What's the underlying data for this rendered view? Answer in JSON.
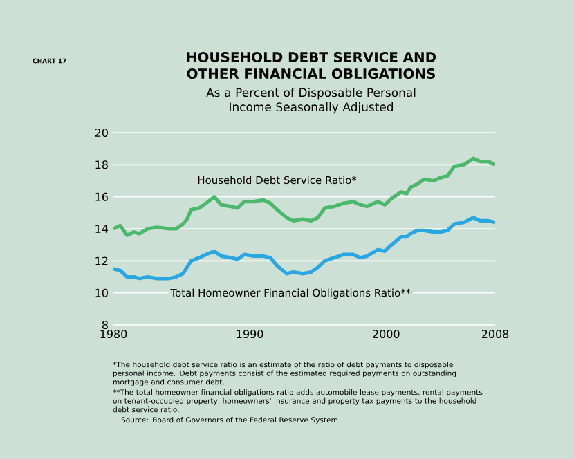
{
  "chart_data": {
    "type": "line",
    "title": "HOUSEHOLD DEBT SERVICE AND OTHER FINANCIAL OBLIGATIONS",
    "subtitle": "As a Percent of Disposable Personal Income Seasonally Adjusted",
    "x": [
      1980.0,
      1980.5,
      1981.0,
      1981.5,
      1981.9,
      1982.5,
      1983.2,
      1984.1,
      1984.6,
      1985.1,
      1985.4,
      1985.7,
      1986.3,
      1986.8,
      1987.4,
      1987.9,
      1988.6,
      1989.1,
      1989.6,
      1990.3,
      1991.0,
      1991.5,
      1992.0,
      1992.7,
      1993.2,
      1993.9,
      1994.5,
      1995.0,
      1995.5,
      1996.2,
      1996.9,
      1997.6,
      1998.1,
      1998.6,
      1999.4,
      1999.9,
      2000.4,
      2001.1,
      2001.5,
      2001.8,
      2002.3,
      2002.8,
      2003.5,
      2004.0,
      2004.5,
      2005.0,
      2005.7,
      2006.4,
      2006.9,
      2007.5,
      2008.0
    ],
    "series": [
      {
        "name": "Household Debt Service Ratio*",
        "color": "#4cb86e",
        "values": [
          14.0,
          14.2,
          13.6,
          13.8,
          13.7,
          14.0,
          14.1,
          14.0,
          14.0,
          14.3,
          14.6,
          15.2,
          15.3,
          15.6,
          16.0,
          15.5,
          15.4,
          15.3,
          15.7,
          15.7,
          15.8,
          15.6,
          15.2,
          14.7,
          14.5,
          14.6,
          14.5,
          14.7,
          15.3,
          15.4,
          15.6,
          15.7,
          15.5,
          15.4,
          15.7,
          15.5,
          15.9,
          16.3,
          16.2,
          16.6,
          16.8,
          17.1,
          17.0,
          17.2,
          17.3,
          17.9,
          18.0,
          18.4,
          18.2,
          18.2,
          18.0
        ]
      },
      {
        "name": "Total Homeowner Financial Obligations Ratio**",
        "color": "#2aa6e0",
        "values": [
          11.5,
          11.4,
          11.0,
          11.0,
          10.9,
          11.0,
          10.9,
          10.9,
          11.0,
          11.2,
          11.6,
          12.0,
          12.2,
          12.4,
          12.6,
          12.3,
          12.2,
          12.1,
          12.4,
          12.3,
          12.3,
          12.2,
          11.7,
          11.2,
          11.3,
          11.2,
          11.3,
          11.6,
          12.0,
          12.2,
          12.4,
          12.4,
          12.2,
          12.3,
          12.7,
          12.6,
          13.0,
          13.5,
          13.5,
          13.7,
          13.9,
          13.9,
          13.8,
          13.8,
          13.9,
          14.3,
          14.4,
          14.7,
          14.5,
          14.5,
          14.4
        ]
      }
    ],
    "xlim": [
      1980,
      2008
    ],
    "xticks": [
      1980,
      1990,
      2000,
      2008
    ],
    "ylim": [
      8,
      20
    ],
    "yticks": [
      8,
      10,
      12,
      14,
      16,
      18,
      20
    ],
    "grid": "y",
    "legend": false,
    "annotations": [
      "CHART 17",
      "*The household debt service ratio is an estimate of the ratio of debt payments to disposable personal income. Debt payments consist of the estimated required payments on outstanding mortgage and consumer debt.",
      "**The total homeowner financial obligations ratio adds automobile lease payments, rental payments on tenant-occupied property, homeowners' insurance and property tax payments to the household debt service ratio.",
      "Source: Board of Governors of the Federal Reserve System"
    ]
  }
}
